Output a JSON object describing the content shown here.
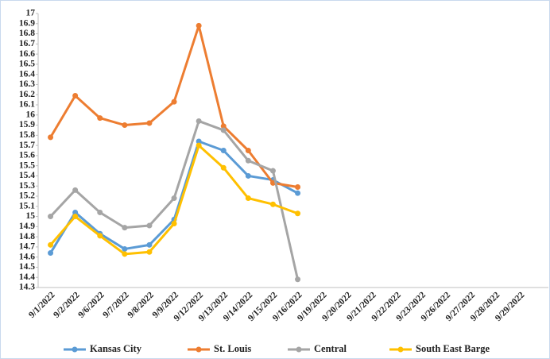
{
  "chart_data": {
    "type": "line",
    "categories": [
      "9/1/2022",
      "9/2/2022",
      "9/6/2022",
      "9/7/2022",
      "9/8/2022",
      "9/9/2022",
      "9/12/2022",
      "9/13/2022",
      "9/14/2022",
      "9/15/2022",
      "9/16/2022",
      "9/19/2022",
      "9/20/2022",
      "9/21/2022",
      "9/22/2022",
      "9/23/2022",
      "9/26/2022",
      "9/27/2022",
      "9/28/2022",
      "9/29/2022"
    ],
    "series": [
      {
        "name": "Kansas City",
        "color": "#5b9bd5",
        "values": [
          14.64,
          15.04,
          14.83,
          14.68,
          14.72,
          14.97,
          15.74,
          15.65,
          15.4,
          15.36,
          15.23,
          null,
          null,
          null,
          null,
          null,
          null,
          null,
          null,
          null
        ]
      },
      {
        "name": "St. Louis",
        "color": "#ed7d31",
        "values": [
          15.78,
          16.19,
          15.97,
          15.9,
          15.92,
          16.13,
          16.88,
          15.89,
          15.65,
          15.33,
          15.29,
          null,
          null,
          null,
          null,
          null,
          null,
          null,
          null,
          null
        ]
      },
      {
        "name": "Central",
        "color": "#a5a5a5",
        "values": [
          15.0,
          15.26,
          15.04,
          14.89,
          14.91,
          15.18,
          15.94,
          15.85,
          15.55,
          15.45,
          14.38,
          null,
          null,
          null,
          null,
          null,
          null,
          null,
          null,
          null
        ]
      },
      {
        "name": "South East Barge",
        "color": "#ffc000",
        "values": [
          14.72,
          15.0,
          14.81,
          14.63,
          14.65,
          14.93,
          15.7,
          15.48,
          15.18,
          15.12,
          15.03,
          null,
          null,
          null,
          null,
          null,
          null,
          null,
          null,
          null
        ]
      }
    ],
    "ylim": [
      14.3,
      17
    ],
    "yticks": [
      14.3,
      14.4,
      14.5,
      14.6,
      14.7,
      14.8,
      14.9,
      15,
      15.1,
      15.2,
      15.3,
      15.4,
      15.5,
      15.6,
      15.7,
      15.8,
      15.9,
      16,
      16.1,
      16.2,
      16.3,
      16.4,
      16.5,
      16.6,
      16.7,
      16.8,
      16.9,
      17
    ],
    "grid": false,
    "legend": "bottom"
  }
}
